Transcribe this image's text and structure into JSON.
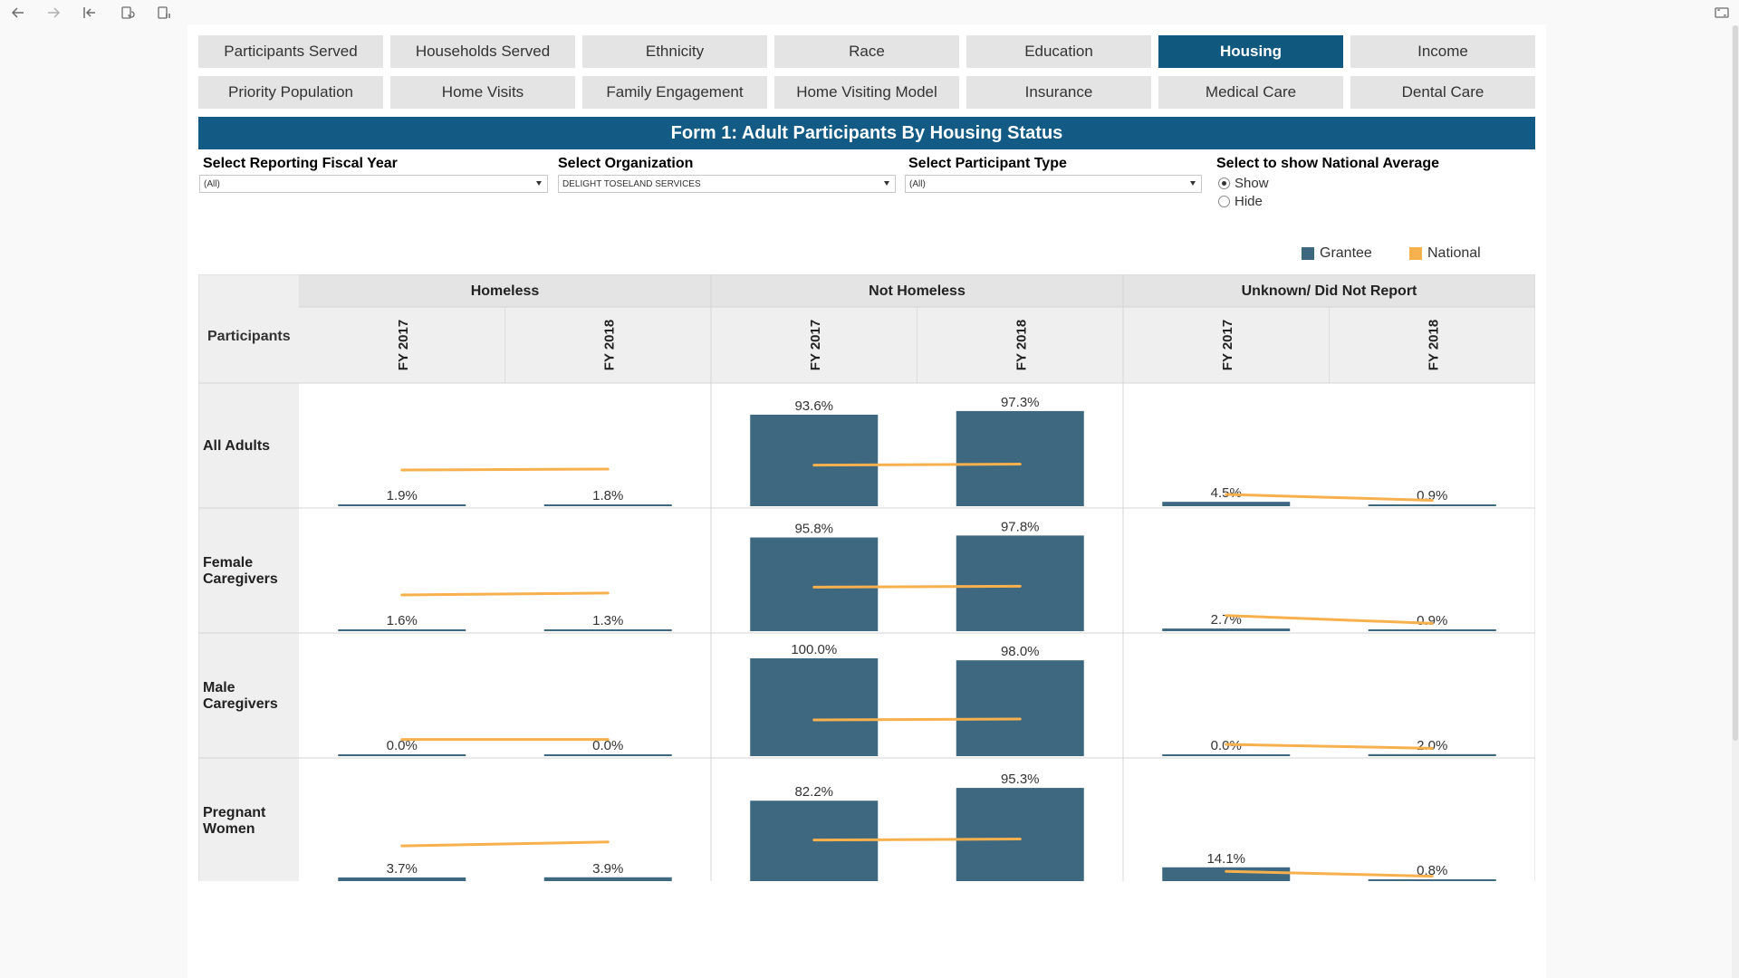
{
  "nav": {
    "row1": [
      "Participants Served",
      "Households Served",
      "Ethnicity",
      "Race",
      "Education",
      "Housing",
      "Income"
    ],
    "row2": [
      "Priority Population",
      "Home Visits",
      "Family Engagement",
      "Home Visiting Model",
      "Insurance",
      "Medical Care",
      "Dental Care"
    ],
    "active": "Housing"
  },
  "title": "Form 1: Adult Participants By Housing Status",
  "filters": {
    "fiscal_year": {
      "label": "Select Reporting Fiscal Year",
      "value": "(All)"
    },
    "organization": {
      "label": "Select Organization",
      "value": "DELIGHT TOSELAND SERVICES"
    },
    "participant_type": {
      "label": "Select Participant Type",
      "value": "(All)"
    },
    "national_average": {
      "label": "Select to show National Average",
      "options": [
        "Show",
        "Hide"
      ],
      "selected": "Show"
    }
  },
  "colors": {
    "grantee": "#3d6880",
    "national": "#f7b04e",
    "header_bg": "#e4e4e4",
    "subheader_bg": "#efefef",
    "rowlabel_bg": "#efefef",
    "accent": "#135b84"
  },
  "chart_data": {
    "type": "bar",
    "legend": {
      "position": "top-right",
      "entries": [
        "Grantee",
        "National"
      ]
    },
    "row_header": "Participants",
    "columns": [
      "Homeless",
      "Not Homeless",
      "Unknown/ Did Not Report"
    ],
    "years": [
      "FY 2017",
      "FY 2018"
    ],
    "rows": [
      {
        "label": "All Adults",
        "grantee": [
          [
            1.9,
            1.8
          ],
          [
            93.6,
            97.3
          ],
          [
            4.5,
            0.9
          ]
        ],
        "grantee_labels": [
          [
            "1.9%",
            "1.8%"
          ],
          [
            "93.6%",
            "97.3%"
          ],
          [
            "4.5%",
            "0.9%"
          ]
        ],
        "national": [
          [
            37,
            38
          ],
          [
            42,
            43
          ],
          [
            12,
            6
          ]
        ]
      },
      {
        "label": "Female Caregivers",
        "grantee": [
          [
            1.6,
            1.3
          ],
          [
            95.8,
            97.8
          ],
          [
            2.7,
            0.9
          ]
        ],
        "grantee_labels": [
          [
            "1.6%",
            "1.3%"
          ],
          [
            "95.8%",
            "97.8%"
          ],
          [
            "2.7%",
            "0.9%"
          ]
        ],
        "national": [
          [
            37,
            39
          ],
          [
            45,
            46
          ],
          [
            16,
            8
          ]
        ]
      },
      {
        "label": "Male Caregivers",
        "grantee": [
          [
            0.0,
            0.0
          ],
          [
            100.0,
            98.0
          ],
          [
            0.0,
            2.0
          ]
        ],
        "grantee_labels": [
          [
            "0.0%",
            "0.0%"
          ],
          [
            "100.0%",
            "98.0%"
          ],
          [
            "0.0%",
            "2.0%"
          ]
        ],
        "national": [
          [
            17,
            17
          ],
          [
            37,
            38
          ],
          [
            12,
            8
          ]
        ]
      },
      {
        "label": "Pregnant Women",
        "grantee": [
          [
            3.7,
            3.9
          ],
          [
            82.2,
            95.3
          ],
          [
            14.1,
            0.8
          ]
        ],
        "grantee_labels": [
          [
            "3.7%",
            "3.9%"
          ],
          [
            "82.2%",
            "95.3%"
          ],
          [
            "14.1%",
            "0.8%"
          ]
        ],
        "national": [
          [
            36,
            40
          ],
          [
            42,
            43
          ],
          [
            10,
            5
          ]
        ]
      }
    ]
  }
}
